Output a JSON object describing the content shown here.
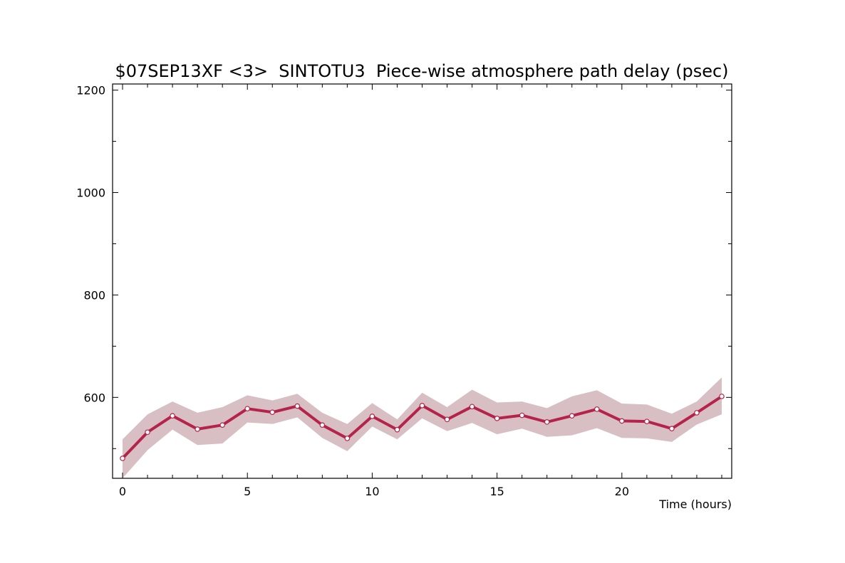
{
  "chart_data": {
    "type": "line",
    "title": "$07SEP13XF <3>  SINTOTU3  Piece-wise atmosphere path delay (psec)",
    "xlabel": "Time (hours)",
    "ylabel": "",
    "xlim": [
      -0.4,
      24.4
    ],
    "ylim": [
      442,
      1212
    ],
    "x_ticks": [
      0,
      5,
      10,
      15,
      20
    ],
    "y_ticks": [
      600,
      800,
      1000,
      1200
    ],
    "grid": false,
    "series": [
      {
        "x": [
          0,
          1,
          2,
          3,
          4,
          5,
          6,
          7,
          8,
          9,
          10,
          11,
          12,
          13,
          14,
          15,
          16,
          17,
          18,
          19,
          20,
          21,
          22,
          23,
          24
        ],
        "values": [
          481,
          532,
          564,
          538,
          546,
          578,
          571,
          583,
          546,
          520,
          563,
          537,
          584,
          557,
          582,
          559,
          565,
          552,
          564,
          577,
          554,
          553,
          539,
          570,
          602
        ],
        "upper": [
          518,
          567,
          592,
          570,
          581,
          604,
          594,
          607,
          570,
          548,
          589,
          557,
          609,
          581,
          615,
          590,
          592,
          579,
          602,
          614,
          588,
          586,
          568,
          592,
          639
        ],
        "lower": [
          442,
          497,
          537,
          507,
          510,
          551,
          548,
          561,
          521,
          495,
          543,
          518,
          559,
          534,
          550,
          528,
          539,
          523,
          526,
          540,
          521,
          520,
          513,
          547,
          567
        ],
        "color": "#b5234a",
        "band_color": "#d7bfc4"
      }
    ]
  }
}
